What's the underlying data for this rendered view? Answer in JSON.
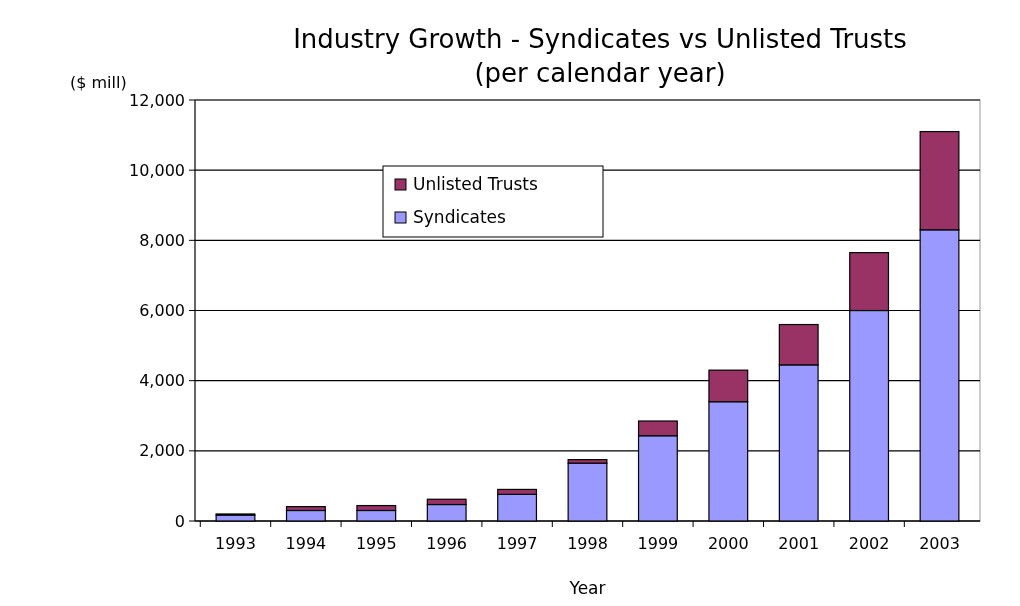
{
  "chart_data": {
    "type": "bar",
    "title": "Industry Growth - Syndicates vs Unlisted Trusts",
    "subtitle": "(per calendar year)",
    "xlabel": "Year",
    "ylabel": "($ mill)",
    "categories": [
      "1993",
      "1994",
      "1995",
      "1996",
      "1997",
      "1998",
      "1999",
      "2000",
      "2001",
      "2002",
      "2003"
    ],
    "stacked": true,
    "series": [
      {
        "name": "Syndicates",
        "color": "#9999ff",
        "values": [
          170,
          300,
          300,
          470,
          760,
          1650,
          2430,
          3400,
          4450,
          6000,
          8300
        ]
      },
      {
        "name": "Unlisted Trusts",
        "color": "#993366",
        "values": [
          30,
          110,
          140,
          150,
          140,
          100,
          420,
          900,
          1150,
          1650,
          2800
        ]
      }
    ],
    "ylim": [
      0,
      12000
    ],
    "yticks": [
      {
        "value": 0,
        "label": "0"
      },
      {
        "value": 2000,
        "label": "2,000"
      },
      {
        "value": 4000,
        "label": "4,000"
      },
      {
        "value": 6000,
        "label": "6,000"
      },
      {
        "value": 8000,
        "label": "8,000"
      },
      {
        "value": 10000,
        "label": "10,000"
      },
      {
        "value": 12000,
        "label": "12,000"
      }
    ],
    "grid": "y",
    "legend": "top left"
  }
}
